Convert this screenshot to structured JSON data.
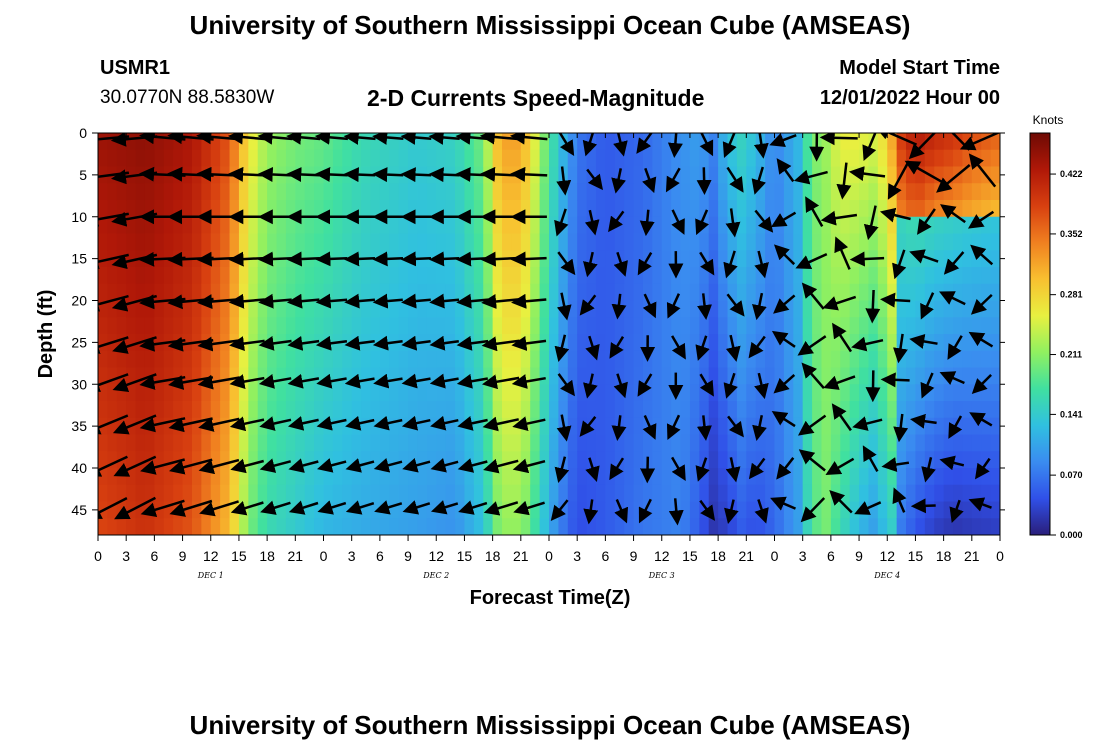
{
  "header": {
    "title": "University of Southern Mississippi Ocean Cube (AMSEAS)",
    "footer_title": "University of Southern Mississippi Ocean Cube (AMSEAS)",
    "station": "USMR1",
    "location": "30.0770N  88.5830W",
    "plot_title": "2-D Currents Speed-Magnitude",
    "model_start_label": "Model Start Time",
    "model_start_value": "12/01/2022 Hour 00"
  },
  "chart_data": {
    "type": "heatmap",
    "subtype": "depth-time current speed section with direction vectors",
    "title": "2-D Currents Speed-Magnitude",
    "xlabel": "Forecast Time(Z)",
    "ylabel": "Depth (ft)",
    "x_range_hours": [
      0,
      96
    ],
    "x_ticks": [
      {
        "hour": 0,
        "label": "0"
      },
      {
        "hour": 3,
        "label": "3"
      },
      {
        "hour": 6,
        "label": "6"
      },
      {
        "hour": 9,
        "label": "9"
      },
      {
        "hour": 12,
        "label": "12"
      },
      {
        "hour": 15,
        "label": "15"
      },
      {
        "hour": 18,
        "label": "18"
      },
      {
        "hour": 21,
        "label": "21"
      },
      {
        "hour": 24,
        "label": "0"
      },
      {
        "hour": 27,
        "label": "3"
      },
      {
        "hour": 30,
        "label": "6"
      },
      {
        "hour": 33,
        "label": "9"
      },
      {
        "hour": 36,
        "label": "12"
      },
      {
        "hour": 39,
        "label": "15"
      },
      {
        "hour": 42,
        "label": "18"
      },
      {
        "hour": 45,
        "label": "21"
      },
      {
        "hour": 48,
        "label": "0"
      },
      {
        "hour": 51,
        "label": "3"
      },
      {
        "hour": 54,
        "label": "6"
      },
      {
        "hour": 57,
        "label": "9"
      },
      {
        "hour": 60,
        "label": "12"
      },
      {
        "hour": 63,
        "label": "15"
      },
      {
        "hour": 66,
        "label": "18"
      },
      {
        "hour": 69,
        "label": "21"
      },
      {
        "hour": 72,
        "label": "0"
      },
      {
        "hour": 75,
        "label": "3"
      },
      {
        "hour": 78,
        "label": "6"
      },
      {
        "hour": 81,
        "label": "9"
      },
      {
        "hour": 84,
        "label": "12"
      },
      {
        "hour": 87,
        "label": "15"
      },
      {
        "hour": 90,
        "label": "18"
      },
      {
        "hour": 93,
        "label": "21"
      },
      {
        "hour": 96,
        "label": "0"
      }
    ],
    "date_labels": [
      {
        "hour": 12,
        "label": "DEC 1"
      },
      {
        "hour": 36,
        "label": "DEC 2"
      },
      {
        "hour": 60,
        "label": "DEC 3"
      },
      {
        "hour": 84,
        "label": "DEC 4"
      }
    ],
    "y_range_ft": [
      0,
      48
    ],
    "y_ticks": [
      0,
      5,
      10,
      15,
      20,
      25,
      30,
      35,
      40,
      45
    ],
    "colorbar": {
      "label": "Knots",
      "range": [
        0,
        0.47
      ],
      "ticks": [
        "0.422",
        "0.352",
        "0.281",
        "0.211",
        "0.141",
        "0.070",
        "0.000"
      ],
      "tick_values": [
        0.422,
        0.352,
        0.281,
        0.211,
        0.141,
        0.07,
        0.0
      ],
      "colors": [
        "#2a1e7a",
        "#3050e8",
        "#3a8cf0",
        "#30c0e0",
        "#40e0a0",
        "#90f060",
        "#e8f040",
        "#f8c030",
        "#f08020",
        "#d84010",
        "#b01808",
        "#6e0a04"
      ]
    },
    "speed_profile": {
      "hours": [
        0,
        5,
        10,
        14,
        16,
        18,
        21,
        24,
        28,
        34,
        38,
        41,
        42.5,
        44,
        45.5,
        47,
        48,
        49.5,
        51,
        54,
        58,
        62,
        64,
        65.5,
        67,
        68.5,
        70,
        72,
        74.5,
        76,
        77.5,
        79,
        81,
        82.5,
        84,
        85.5,
        87,
        89,
        91,
        93,
        96
      ],
      "surface_knots": [
        0.44,
        0.45,
        0.43,
        0.37,
        0.27,
        0.22,
        0.2,
        0.19,
        0.16,
        0.14,
        0.15,
        0.2,
        0.3,
        0.33,
        0.3,
        0.23,
        0.18,
        0.12,
        0.07,
        0.05,
        0.06,
        0.09,
        0.1,
        0.08,
        0.13,
        0.15,
        0.13,
        0.08,
        0.12,
        0.2,
        0.22,
        0.26,
        0.26,
        0.25,
        0.28,
        0.39,
        0.43,
        0.41,
        0.4,
        0.38,
        0.36
      ],
      "bottom_knots": [
        0.38,
        0.4,
        0.37,
        0.3,
        0.2,
        0.16,
        0.14,
        0.12,
        0.11,
        0.1,
        0.09,
        0.13,
        0.2,
        0.22,
        0.2,
        0.15,
        0.11,
        0.07,
        0.04,
        0.05,
        0.07,
        0.08,
        0.05,
        0.02,
        0.03,
        0.05,
        0.04,
        0.06,
        0.1,
        0.18,
        0.2,
        0.16,
        0.12,
        0.1,
        0.13,
        0.16,
        0.1,
        0.06,
        0.04,
        0.05,
        0.06
      ]
    }
  }
}
